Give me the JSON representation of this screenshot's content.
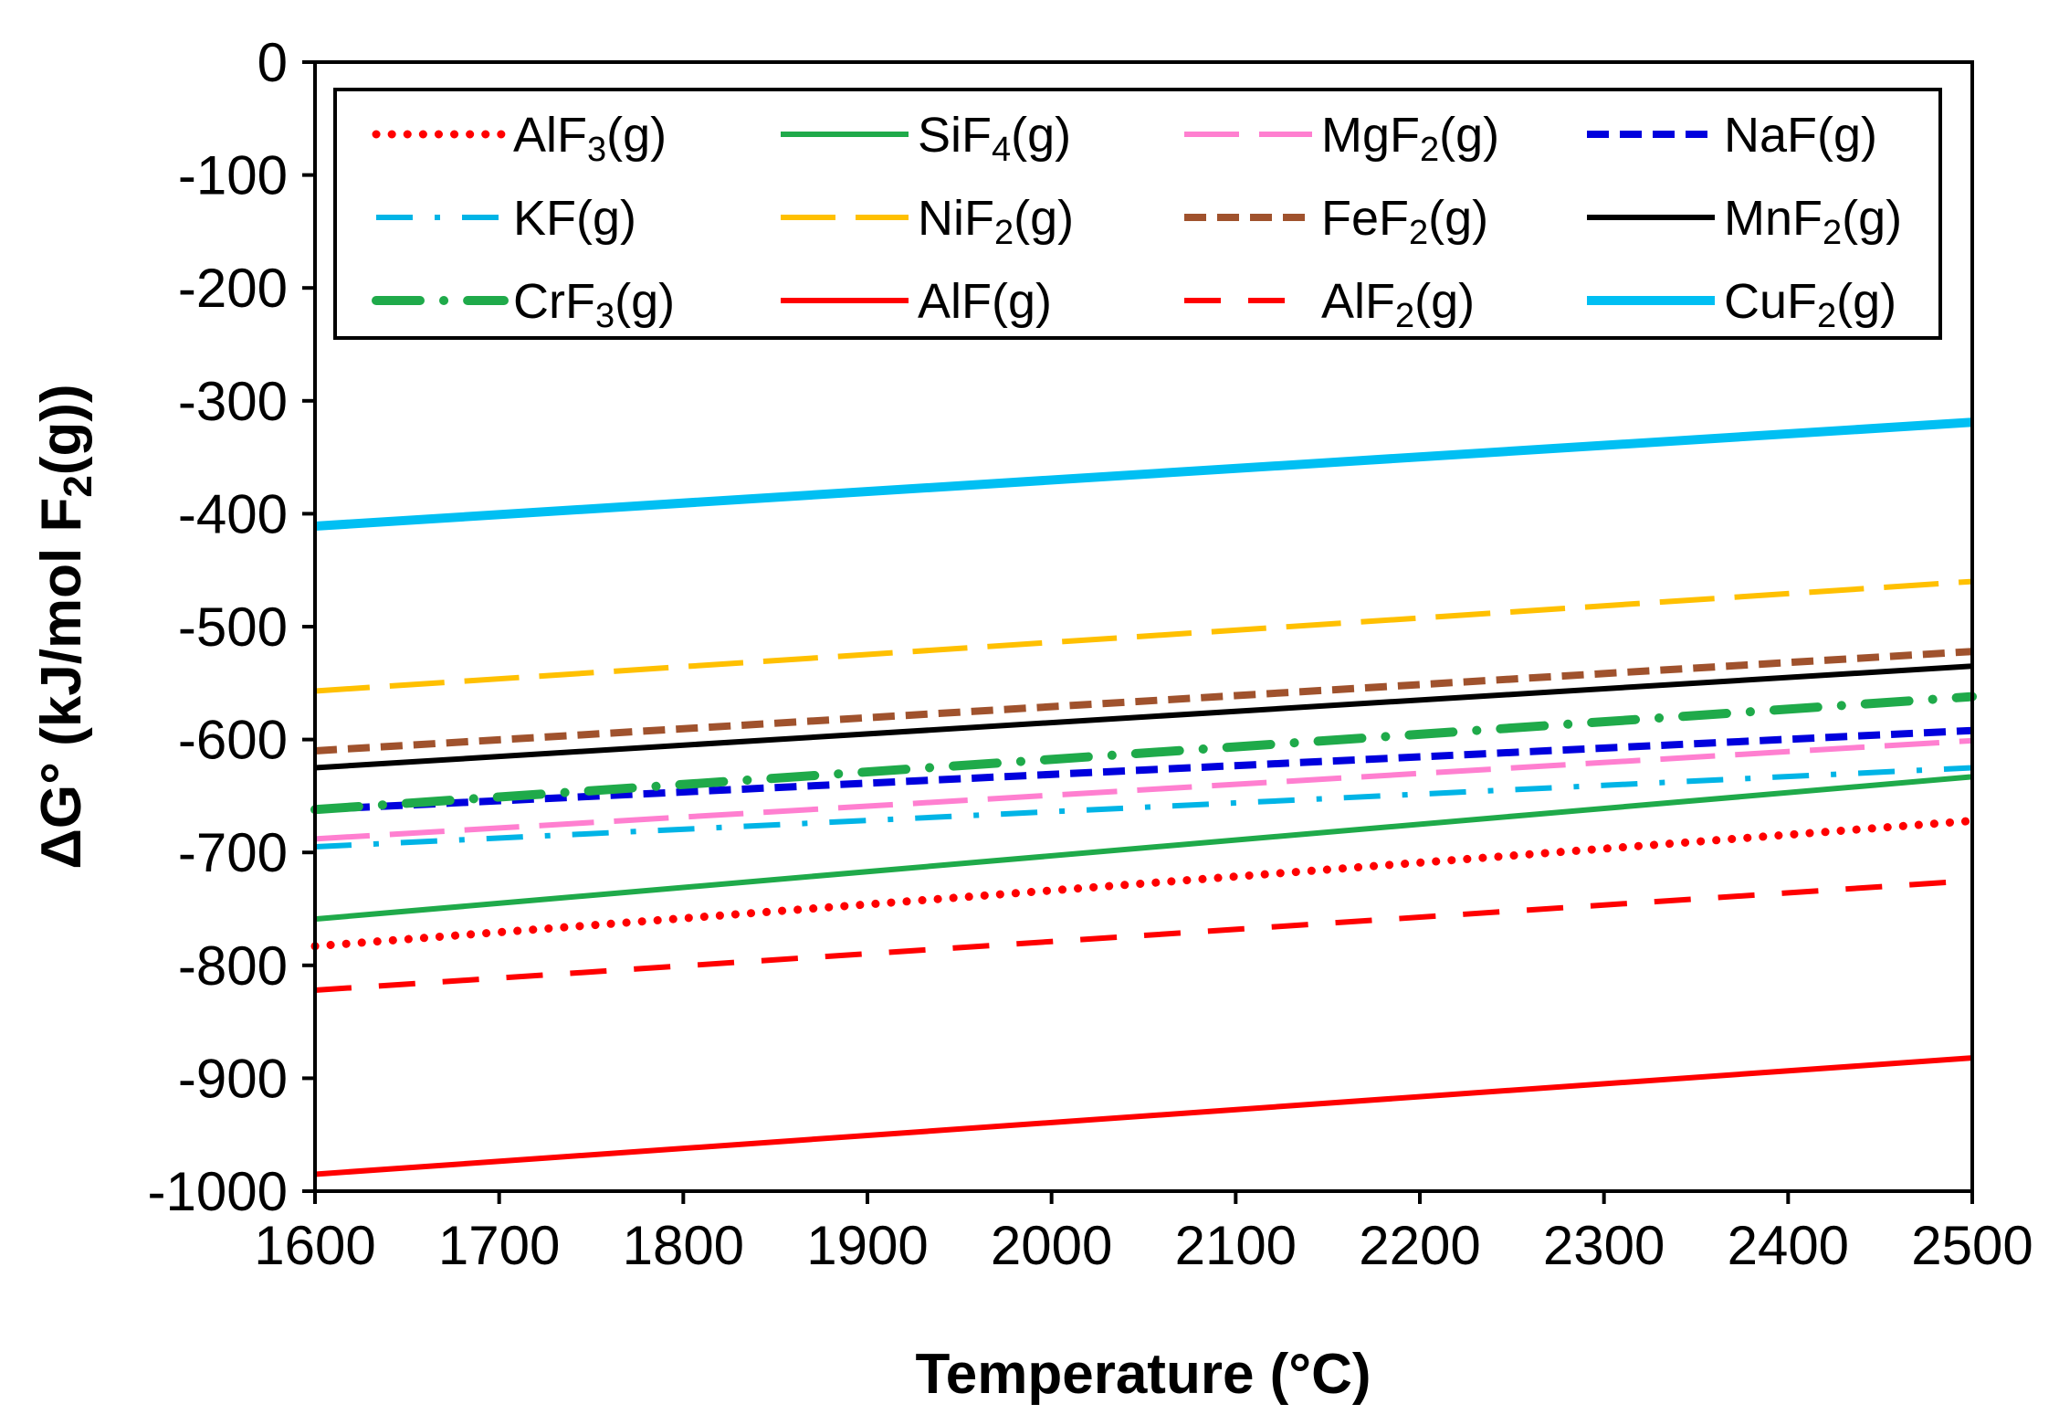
{
  "chart_data": {
    "type": "line",
    "title": "",
    "xlabel": "Temperature (°C)",
    "ylabel_main": "ΔG° (kJ/mol F",
    "ylabel_sub": "2",
    "ylabel_tail": "(g))",
    "xlim": [
      1600,
      2500
    ],
    "ylim": [
      -1000,
      0
    ],
    "x_ticks": [
      1600,
      1700,
      1800,
      1900,
      2000,
      2100,
      2200,
      2300,
      2400,
      2500
    ],
    "y_ticks": [
      0,
      -100,
      -200,
      -300,
      -400,
      -500,
      -600,
      -700,
      -800,
      -900,
      -1000
    ],
    "x_tick_labels": [
      "1600",
      "1700",
      "1800",
      "1900",
      "2000",
      "2100",
      "2200",
      "2300",
      "2400",
      "2500"
    ],
    "y_tick_labels": [
      "0",
      "-100",
      "-200",
      "-300",
      "-400",
      "-500",
      "-600",
      "-700",
      "-800",
      "-900",
      "-1000"
    ],
    "grid": false,
    "legend_position": "top",
    "series": [
      {
        "name": "AlF3(g)",
        "label_main": "AlF",
        "label_sub": "3",
        "label_tail": "(g)",
        "color": "#ff0000",
        "style": "dotted",
        "x": [
          1600,
          2500
        ],
        "y": [
          -783,
          -672
        ]
      },
      {
        "name": "SiF4(g)",
        "label_main": "SiF",
        "label_sub": "4",
        "label_tail": "(g)",
        "color": "#1faa4a",
        "style": "solid",
        "x": [
          1600,
          2500
        ],
        "y": [
          -759,
          -633
        ]
      },
      {
        "name": "MgF2(g)",
        "label_main": "MgF",
        "label_sub": "2",
        "label_tail": "(g)",
        "color": "#ff7fd0",
        "style": "longdash",
        "x": [
          1600,
          2500
        ],
        "y": [
          -688,
          -601
        ]
      },
      {
        "name": "NaF(g)",
        "label_main": "NaF(g)",
        "label_sub": "",
        "label_tail": "",
        "color": "#0000dd",
        "style": "dash",
        "x": [
          1600,
          2500
        ],
        "y": [
          -662,
          -592
        ]
      },
      {
        "name": "KF(g)",
        "label_main": "KF(g)",
        "label_sub": "",
        "label_tail": "",
        "color": "#00b4e6",
        "style": "dashdot",
        "x": [
          1600,
          2500
        ],
        "y": [
          -695,
          -625
        ]
      },
      {
        "name": "NiF2(g)",
        "label_main": "NiF",
        "label_sub": "2",
        "label_tail": "(g)",
        "color": "#ffc000",
        "style": "longdash",
        "x": [
          1600,
          2500
        ],
        "y": [
          -557,
          -460
        ]
      },
      {
        "name": "FeF2(g)",
        "label_main": "FeF",
        "label_sub": "2",
        "label_tail": "(g)",
        "color": "#a0522d",
        "style": "dash",
        "x": [
          1600,
          2500
        ],
        "y": [
          -610,
          -522
        ]
      },
      {
        "name": "MnF2(g)",
        "label_main": "MnF",
        "label_sub": "2",
        "label_tail": "(g)",
        "color": "#000000",
        "style": "solid",
        "x": [
          1600,
          2500
        ],
        "y": [
          -625,
          -535
        ]
      },
      {
        "name": "CrF3(g)",
        "label_main": "CrF",
        "label_sub": "3",
        "label_tail": "(g)",
        "color": "#1faa4a",
        "style": "dashdot_thick",
        "x": [
          1600,
          2500
        ],
        "y": [
          -662,
          -562
        ]
      },
      {
        "name": "AlF(g)",
        "label_main": "AlF(g)",
        "label_sub": "",
        "label_tail": "",
        "color": "#ff0000",
        "style": "solid",
        "x": [
          1600,
          2500
        ],
        "y": [
          -985,
          -882
        ]
      },
      {
        "name": "AlF2(g)",
        "label_main": "AlF",
        "label_sub": "2",
        "label_tail": "(g)",
        "color": "#ff0000",
        "style": "dash_sparse",
        "x": [
          1600,
          2500
        ],
        "y": [
          -822,
          -725
        ]
      },
      {
        "name": "CuF2(g)",
        "label_main": "CuF",
        "label_sub": "2",
        "label_tail": "(g)",
        "color": "#00bff3",
        "style": "solid_thick",
        "x": [
          1600,
          2500
        ],
        "y": [
          -411,
          -319
        ]
      }
    ]
  }
}
